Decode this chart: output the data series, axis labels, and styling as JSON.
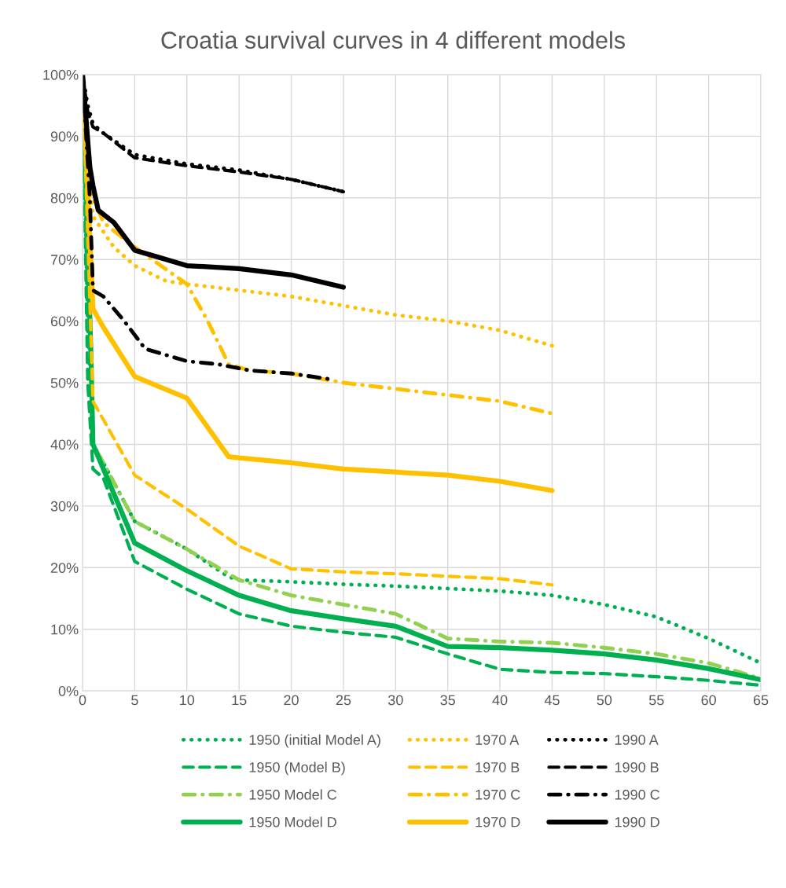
{
  "chart_data": {
    "type": "line",
    "title": "Croatia survival curves in 4 different models",
    "xlim": [
      0,
      65
    ],
    "xticks": [
      0,
      5,
      10,
      15,
      20,
      25,
      30,
      35,
      40,
      45,
      50,
      55,
      60,
      65
    ],
    "ylim": [
      0,
      100
    ],
    "yticks": [
      {
        "value": 0,
        "label": "0%"
      },
      {
        "value": 10,
        "label": "10%"
      },
      {
        "value": 20,
        "label": "20%"
      },
      {
        "value": 30,
        "label": "30%"
      },
      {
        "value": 40,
        "label": "40%"
      },
      {
        "value": 50,
        "label": "50%"
      },
      {
        "value": 60,
        "label": "60%"
      },
      {
        "value": 70,
        "label": "70%"
      },
      {
        "value": 80,
        "label": "80%"
      },
      {
        "value": 90,
        "label": "90%"
      },
      {
        "value": 100,
        "label": "100%"
      }
    ],
    "grid": true,
    "legend": "bottom",
    "marker": "none",
    "series": [
      {
        "name": "1950 (initial Model A)",
        "color": "#00b050",
        "line_style": "dotted",
        "x": [
          0,
          0.5,
          1,
          2,
          5,
          10,
          14,
          15,
          20,
          25,
          30,
          35,
          40,
          45,
          50,
          55,
          60,
          65
        ],
        "values": [
          100,
          60,
          40,
          37,
          27.5,
          23,
          18.5,
          18,
          17.7,
          17.3,
          17,
          16.6,
          16.2,
          15.5,
          14,
          12,
          8.5,
          4.5
        ]
      },
      {
        "name": "1950 (Model B)",
        "color": "#00b050",
        "line_style": "dashed",
        "x": [
          0,
          0.5,
          1,
          2,
          5,
          10,
          15,
          20,
          25,
          30,
          35,
          40,
          45,
          50,
          55,
          60,
          65
        ],
        "values": [
          100,
          50,
          36,
          34.5,
          21,
          16.5,
          12.5,
          10.5,
          9.5,
          8.7,
          6,
          3.5,
          3,
          2.8,
          2.3,
          1.7,
          0.9
        ]
      },
      {
        "name": "1950 Model C",
        "color": "#92d050",
        "line_style": "dashdot",
        "x": [
          0,
          1,
          2,
          5,
          10,
          15,
          20,
          25,
          30,
          35,
          40,
          45,
          50,
          55,
          60,
          65
        ],
        "values": [
          100,
          40,
          37,
          27.5,
          23,
          18,
          15.5,
          14,
          12.5,
          8.5,
          8,
          7.8,
          7,
          6,
          4.5,
          2
        ]
      },
      {
        "name": "1950 Model D",
        "color": "#00b050",
        "x": [
          0,
          0.8,
          1,
          2,
          4,
          5,
          10,
          15,
          20,
          25,
          30,
          35,
          40,
          45,
          50,
          55,
          60,
          65
        ],
        "values": [
          100,
          55,
          40,
          36,
          28,
          24,
          19.5,
          15.5,
          13,
          11.7,
          10.5,
          7.2,
          7,
          6.6,
          6,
          5,
          3.6,
          1.8
        ]
      },
      {
        "name": "1970 A",
        "color": "#ffc000",
        "line_style": "dotted",
        "x": [
          0,
          0.5,
          1,
          3,
          5,
          8,
          10,
          15,
          20,
          25,
          30,
          35,
          40,
          45
        ],
        "values": [
          100,
          85,
          77,
          72,
          69,
          66.5,
          66,
          65,
          64,
          62.5,
          61,
          60,
          58.5,
          56
        ]
      },
      {
        "name": "1970 B",
        "color": "#ffc000",
        "line_style": "dashed",
        "x": [
          0,
          0.8,
          1,
          2,
          5,
          10,
          15,
          20,
          25,
          30,
          35,
          40,
          45
        ],
        "values": [
          100,
          58,
          47,
          44,
          35,
          29.5,
          23.5,
          19.8,
          19.3,
          19,
          18.6,
          18.2,
          17.2
        ]
      },
      {
        "name": "1970 C",
        "color": "#ffc000",
        "line_style": "dashdot",
        "x": [
          0,
          1,
          2,
          5,
          10,
          12,
          14,
          16,
          20,
          25,
          30,
          35,
          40,
          45
        ],
        "values": [
          100,
          80,
          76,
          72,
          66,
          60,
          53,
          52,
          51.5,
          50,
          49,
          48,
          47,
          45
        ]
      },
      {
        "name": "1970 D",
        "color": "#ffc000",
        "x": [
          0,
          0.8,
          1,
          2,
          5,
          10,
          14,
          15,
          20,
          25,
          30,
          35,
          40,
          45
        ],
        "values": [
          100,
          70,
          62,
          59,
          51,
          47.5,
          38,
          37.8,
          37,
          36,
          35.5,
          35,
          34,
          32.5
        ]
      },
      {
        "name": "1990 A",
        "color": "#000000",
        "line_style": "dotted",
        "x": [
          0,
          0.5,
          1,
          2,
          5,
          10,
          15,
          20,
          25
        ],
        "values": [
          100,
          95,
          92,
          90.5,
          87,
          85.5,
          84.5,
          83,
          81
        ]
      },
      {
        "name": "1990 B",
        "color": "#000000",
        "line_style": "dashed",
        "x": [
          0,
          0.5,
          1,
          2,
          5,
          10,
          15,
          20,
          25
        ],
        "values": [
          100,
          94,
          91.5,
          90.5,
          86.5,
          85.2,
          84.2,
          83,
          81
        ]
      },
      {
        "name": "1990 C",
        "color": "#000000",
        "line_style": "dashdot",
        "x": [
          0,
          0.7,
          1,
          2,
          4,
          6,
          10,
          13,
          16,
          20,
          24
        ],
        "values": [
          100,
          80,
          65,
          64,
          60,
          55.5,
          53.5,
          53,
          52,
          51.5,
          50.5
        ]
      },
      {
        "name": "1990 D",
        "color": "#000000",
        "x": [
          0,
          0.7,
          1,
          1.5,
          3,
          5,
          7,
          10,
          15,
          20,
          25
        ],
        "values": [
          100,
          85,
          82,
          78,
          76,
          71.5,
          70.5,
          69,
          68.5,
          67.5,
          65.5
        ]
      }
    ]
  }
}
